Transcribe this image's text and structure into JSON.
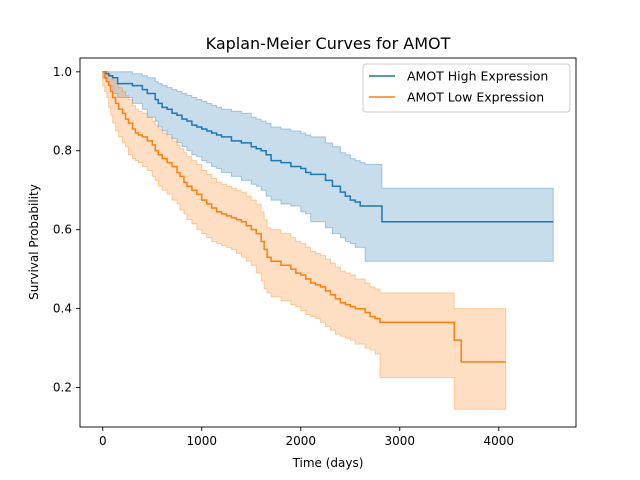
{
  "chart_data": {
    "type": "line",
    "title": "Kaplan-Meier Curves for AMOT",
    "xlabel": "Time (days)",
    "ylabel": "Survival Probability",
    "xlim": [
      -230,
      4780
    ],
    "ylim": [
      0.1,
      1.035
    ],
    "x_ticks": [
      0,
      1000,
      2000,
      3000,
      4000
    ],
    "y_ticks": [
      0.2,
      0.4,
      0.6,
      0.8,
      1.0
    ],
    "x_tick_labels": [
      "0",
      "1000",
      "2000",
      "3000",
      "4000"
    ],
    "y_tick_labels": [
      "0.2",
      "0.4",
      "0.6",
      "0.8",
      "1.0"
    ],
    "grid": false,
    "legend_position": "top-right",
    "series": [
      {
        "name": "AMOT High Expression",
        "color": "#1f77b4",
        "band_color": "#1f77b4",
        "x": [
          0,
          30,
          60,
          100,
          150,
          300,
          400,
          450,
          530,
          560,
          600,
          650,
          700,
          750,
          800,
          850,
          900,
          950,
          1000,
          1050,
          1100,
          1150,
          1200,
          1300,
          1400,
          1500,
          1550,
          1600,
          1650,
          1700,
          1800,
          1900,
          2000,
          2050,
          2100,
          2250,
          2320,
          2400,
          2450,
          2500,
          2550,
          2600,
          2650,
          2820,
          4550
        ],
        "y": [
          1.0,
          0.995,
          0.99,
          0.985,
          0.97,
          0.965,
          0.955,
          0.945,
          0.93,
          0.92,
          0.91,
          0.905,
          0.895,
          0.89,
          0.88,
          0.875,
          0.865,
          0.86,
          0.855,
          0.85,
          0.845,
          0.84,
          0.835,
          0.825,
          0.82,
          0.81,
          0.805,
          0.8,
          0.79,
          0.775,
          0.77,
          0.76,
          0.755,
          0.745,
          0.74,
          0.725,
          0.71,
          0.695,
          0.685,
          0.675,
          0.67,
          0.66,
          0.66,
          0.62,
          0.62
        ],
        "ci_upper": [
          1.0,
          1.0,
          1.0,
          1.0,
          1.0,
          0.995,
          0.99,
          0.985,
          0.975,
          0.97,
          0.965,
          0.96,
          0.955,
          0.95,
          0.945,
          0.94,
          0.935,
          0.93,
          0.925,
          0.92,
          0.915,
          0.91,
          0.905,
          0.9,
          0.895,
          0.885,
          0.88,
          0.875,
          0.87,
          0.86,
          0.855,
          0.85,
          0.845,
          0.84,
          0.835,
          0.82,
          0.81,
          0.795,
          0.79,
          0.78,
          0.775,
          0.77,
          0.765,
          0.705,
          0.705
        ],
        "ci_lower": [
          1.0,
          0.985,
          0.975,
          0.965,
          0.945,
          0.935,
          0.92,
          0.905,
          0.885,
          0.875,
          0.86,
          0.85,
          0.84,
          0.83,
          0.82,
          0.81,
          0.8,
          0.79,
          0.785,
          0.775,
          0.77,
          0.76,
          0.755,
          0.745,
          0.735,
          0.725,
          0.715,
          0.71,
          0.7,
          0.685,
          0.675,
          0.665,
          0.66,
          0.645,
          0.64,
          0.62,
          0.605,
          0.59,
          0.58,
          0.57,
          0.565,
          0.555,
          0.555,
          0.52,
          0.52
        ]
      },
      {
        "name": "AMOT Low Expression",
        "color": "#ff7f0e",
        "band_color": "#ff7f0e",
        "x": [
          0,
          20,
          40,
          60,
          80,
          100,
          130,
          160,
          200,
          230,
          260,
          300,
          330,
          360,
          400,
          450,
          500,
          530,
          560,
          600,
          650,
          700,
          750,
          780,
          820,
          850,
          900,
          950,
          1000,
          1050,
          1100,
          1150,
          1200,
          1250,
          1300,
          1350,
          1400,
          1450,
          1500,
          1550,
          1600,
          1630,
          1660,
          1700,
          1800,
          1900,
          1950,
          2000,
          2050,
          2100,
          2150,
          2200,
          2250,
          2300,
          2350,
          2400,
          2450,
          2500,
          2550,
          2650,
          2700,
          2750,
          2800,
          3550,
          3620,
          4070
        ],
        "y": [
          1.0,
          0.985,
          0.975,
          0.965,
          0.95,
          0.935,
          0.92,
          0.905,
          0.895,
          0.88,
          0.87,
          0.855,
          0.845,
          0.84,
          0.835,
          0.825,
          0.815,
          0.8,
          0.79,
          0.78,
          0.77,
          0.76,
          0.745,
          0.735,
          0.72,
          0.71,
          0.7,
          0.69,
          0.675,
          0.665,
          0.655,
          0.645,
          0.64,
          0.635,
          0.63,
          0.625,
          0.62,
          0.61,
          0.6,
          0.59,
          0.57,
          0.55,
          0.53,
          0.52,
          0.51,
          0.5,
          0.49,
          0.485,
          0.475,
          0.465,
          0.46,
          0.455,
          0.445,
          0.435,
          0.425,
          0.415,
          0.41,
          0.405,
          0.4,
          0.39,
          0.38,
          0.375,
          0.365,
          0.32,
          0.265,
          0.265
        ],
        "ci_upper": [
          1.0,
          1.0,
          1.0,
          0.995,
          0.99,
          0.98,
          0.97,
          0.96,
          0.95,
          0.94,
          0.93,
          0.915,
          0.905,
          0.9,
          0.895,
          0.885,
          0.875,
          0.865,
          0.855,
          0.845,
          0.835,
          0.825,
          0.815,
          0.805,
          0.795,
          0.785,
          0.775,
          0.765,
          0.75,
          0.74,
          0.73,
          0.72,
          0.715,
          0.71,
          0.705,
          0.7,
          0.695,
          0.685,
          0.675,
          0.665,
          0.645,
          0.625,
          0.605,
          0.6,
          0.59,
          0.58,
          0.57,
          0.565,
          0.555,
          0.545,
          0.54,
          0.535,
          0.525,
          0.515,
          0.505,
          0.495,
          0.49,
          0.485,
          0.475,
          0.465,
          0.455,
          0.45,
          0.44,
          0.4,
          0.4,
          0.4
        ],
        "ci_lower": [
          1.0,
          0.965,
          0.95,
          0.935,
          0.91,
          0.89,
          0.87,
          0.85,
          0.835,
          0.82,
          0.81,
          0.79,
          0.78,
          0.775,
          0.77,
          0.76,
          0.75,
          0.735,
          0.725,
          0.71,
          0.7,
          0.69,
          0.675,
          0.665,
          0.65,
          0.64,
          0.625,
          0.615,
          0.6,
          0.59,
          0.58,
          0.57,
          0.565,
          0.56,
          0.555,
          0.55,
          0.54,
          0.53,
          0.52,
          0.51,
          0.49,
          0.47,
          0.45,
          0.44,
          0.43,
          0.42,
          0.41,
          0.405,
          0.395,
          0.385,
          0.38,
          0.375,
          0.365,
          0.355,
          0.345,
          0.335,
          0.33,
          0.325,
          0.32,
          0.31,
          0.3,
          0.295,
          0.285,
          0.225,
          0.145,
          0.145
        ]
      }
    ]
  }
}
